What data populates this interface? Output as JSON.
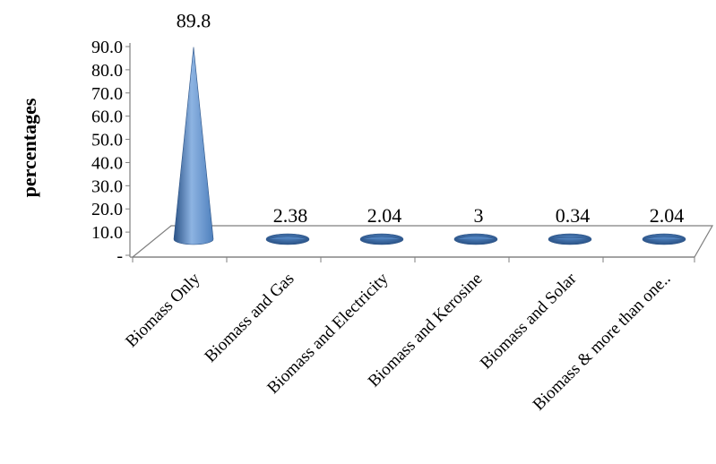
{
  "chart_data": {
    "type": "bar",
    "bar_shape": "cone-3d",
    "categories": [
      "Biomass Only",
      "Biomass and Gas",
      "Biomass and Electricity",
      "Biomass and Kerosine",
      "Biomass and Solar",
      "Biomass & more than one.."
    ],
    "values": [
      89.8,
      2.38,
      2.04,
      3,
      0.34,
      2.04
    ],
    "value_labels": [
      "89.8",
      "2.38",
      "2.04",
      "3",
      "0.34",
      "2.04"
    ],
    "title": "",
    "xlabel": "",
    "ylabel": "percentages",
    "ylim": [
      0,
      90
    ],
    "yticks": [
      "-",
      "10.0",
      "20.0",
      "30.0",
      "40.0",
      "50.0",
      "60.0",
      "70.0",
      "80.0",
      "90.0"
    ],
    "grid": false,
    "legend": "none",
    "colors": {
      "bar": "#4f81bd",
      "bar_dark": "#2a5286",
      "bar_light": "#8db3e2",
      "floor_stroke": "#7f7f7f",
      "axis": "#7f7f7f"
    }
  }
}
